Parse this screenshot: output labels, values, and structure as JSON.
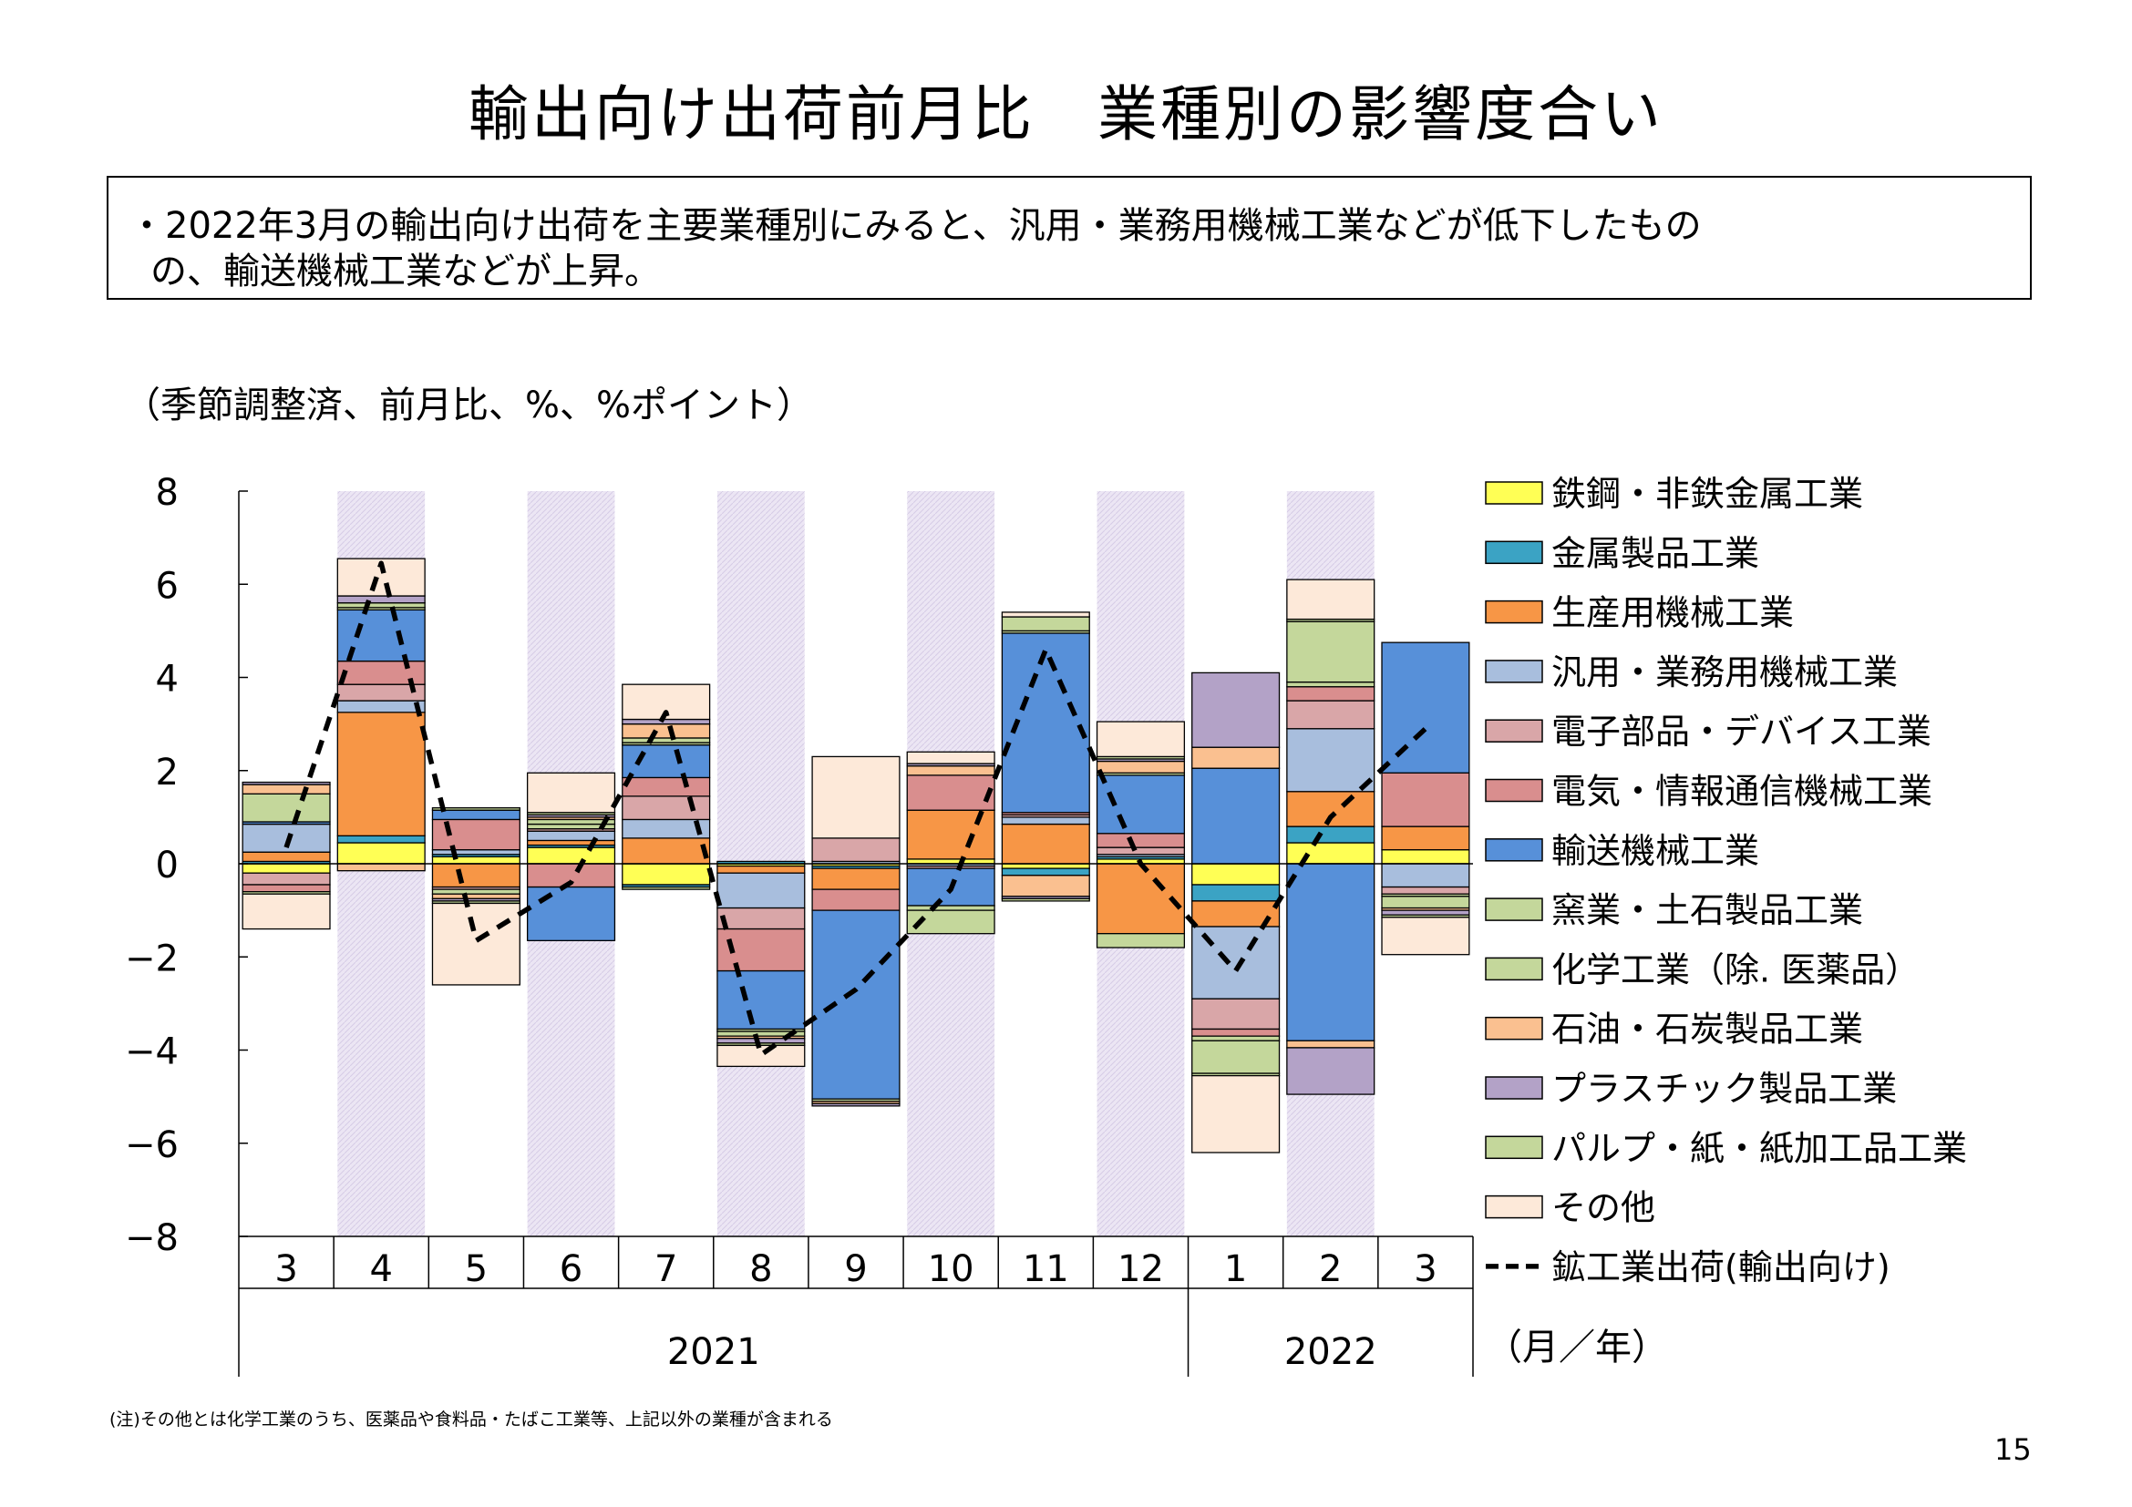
{
  "title": "輸出向け出荷前月比　業種別の影響度合い",
  "summary": {
    "line1": "・2022年3月の輸出向け出荷を主要業種別にみると、汎用・業務用機械工業などが低下したもの",
    "line2": "の、輸送機械工業などが上昇。"
  },
  "unit_label": "（季節調整済、前月比、%、%ポイント）",
  "note": "(注)その他とは化学工業のうち、医薬品や食料品・たばこ工業等、上記以外の業種が含まれる",
  "page_number": "15",
  "chart_data": {
    "type": "bar",
    "stacked": true,
    "ylim": [
      -8,
      8
    ],
    "yticks": [
      8,
      6,
      4,
      2,
      0,
      -2,
      -4,
      -6,
      -8
    ],
    "categories": [
      "3",
      "4",
      "5",
      "6",
      "7",
      "8",
      "9",
      "10",
      "11",
      "12",
      "1",
      "2",
      "3"
    ],
    "year_labels": [
      "2021",
      "2022"
    ],
    "x_unit": "（月／年）",
    "shaded_categories": [
      1,
      3,
      5,
      7,
      9,
      11
    ],
    "series": [
      {
        "name": "鉄鋼・非鉄金属工業",
        "color": "#FFFF55",
        "values": [
          -0.2,
          0.45,
          0.15,
          0.35,
          -0.45,
          -0.05,
          -0.05,
          0.1,
          -0.1,
          0.1,
          -0.45,
          0.45,
          0.3
        ]
      },
      {
        "name": "金属製品工業",
        "color": "#3BA3C4",
        "values": [
          0.05,
          0.15,
          0.05,
          0.05,
          -0.05,
          0.05,
          -0.05,
          0.0,
          -0.15,
          0.05,
          -0.35,
          0.35,
          0.0
        ]
      },
      {
        "name": "生産用機械工業",
        "color": "#F79646",
        "values": [
          0.2,
          2.65,
          -0.5,
          0.1,
          0.55,
          -0.15,
          -0.45,
          1.05,
          0.85,
          -1.5,
          -0.55,
          0.75,
          0.5
        ]
      },
      {
        "name": "汎用・業務用機械工業",
        "color": "#A8BEDD",
        "values": [
          0.6,
          0.25,
          0.1,
          0.2,
          0.4,
          -0.75,
          0.05,
          -0.05,
          0.15,
          0.05,
          -1.55,
          1.35,
          -0.5
        ]
      },
      {
        "name": "電子部品・デバイス工業",
        "color": "#D9A6A8",
        "values": [
          -0.25,
          0.35,
          -0.05,
          0.05,
          0.5,
          -0.45,
          0.5,
          -0.05,
          0.05,
          0.15,
          -0.65,
          0.6,
          -0.15
        ]
      },
      {
        "name": "電気・情報通信機械工業",
        "color": "#D98E8E",
        "values": [
          -0.15,
          0.5,
          0.65,
          -0.5,
          0.4,
          -0.9,
          -0.45,
          0.75,
          0.05,
          0.3,
          -0.15,
          0.3,
          1.15
        ]
      },
      {
        "name": "輸送機械工業",
        "color": "#5790D9",
        "values": [
          0.05,
          1.1,
          0.2,
          -1.15,
          0.7,
          -1.25,
          -4.05,
          -0.8,
          3.85,
          1.25,
          2.05,
          -3.8,
          2.8
        ]
      },
      {
        "name": "窯業・土石製品工業",
        "color": "#C4D79B",
        "values": [
          0.0,
          0.05,
          0.05,
          0.1,
          0.05,
          -0.05,
          -0.05,
          -0.1,
          0.05,
          0.05,
          -0.1,
          0.1,
          -0.05
        ]
      },
      {
        "name": "化学工業（除. 医薬品）",
        "color": "#C4D79B",
        "values": [
          0.6,
          0.1,
          -0.1,
          0.1,
          0.1,
          -0.1,
          0.0,
          -0.5,
          0.3,
          -0.3,
          -0.7,
          1.3,
          -0.25
        ]
      },
      {
        "name": "石油・石炭製品工業",
        "color": "#FAC090",
        "values": [
          0.2,
          -0.15,
          -0.1,
          0.05,
          0.3,
          -0.05,
          -0.05,
          0.2,
          -0.45,
          0.25,
          0.45,
          -0.15,
          -0.05
        ]
      },
      {
        "name": "プラスチック製品工業",
        "color": "#B3A2C7",
        "values": [
          0.05,
          0.15,
          -0.05,
          0.05,
          0.1,
          -0.1,
          -0.05,
          0.05,
          -0.05,
          0.05,
          1.6,
          -1.0,
          -0.1
        ]
      },
      {
        "name": "パルプ・紙・紙加工品工業",
        "color": "#C4D79B",
        "values": [
          -0.05,
          0.0,
          -0.05,
          0.05,
          -0.05,
          -0.05,
          0.0,
          0.0,
          -0.05,
          0.05,
          -0.05,
          0.05,
          -0.05
        ]
      },
      {
        "name": "その他",
        "color": "#FDE9D9",
        "values": [
          -0.75,
          0.8,
          -1.75,
          0.85,
          0.75,
          -0.45,
          1.75,
          0.25,
          0.1,
          0.75,
          -1.65,
          0.85,
          -0.8
        ]
      }
    ],
    "line_series": {
      "name": "鉱工業出荷(輸出向け)",
      "color": "#000000",
      "style": "dashed",
      "values": [
        0.35,
        6.45,
        -1.65,
        -0.4,
        3.25,
        -4.1,
        -2.7,
        -0.55,
        4.6,
        0.0,
        -2.3,
        1.0,
        2.9
      ]
    }
  }
}
